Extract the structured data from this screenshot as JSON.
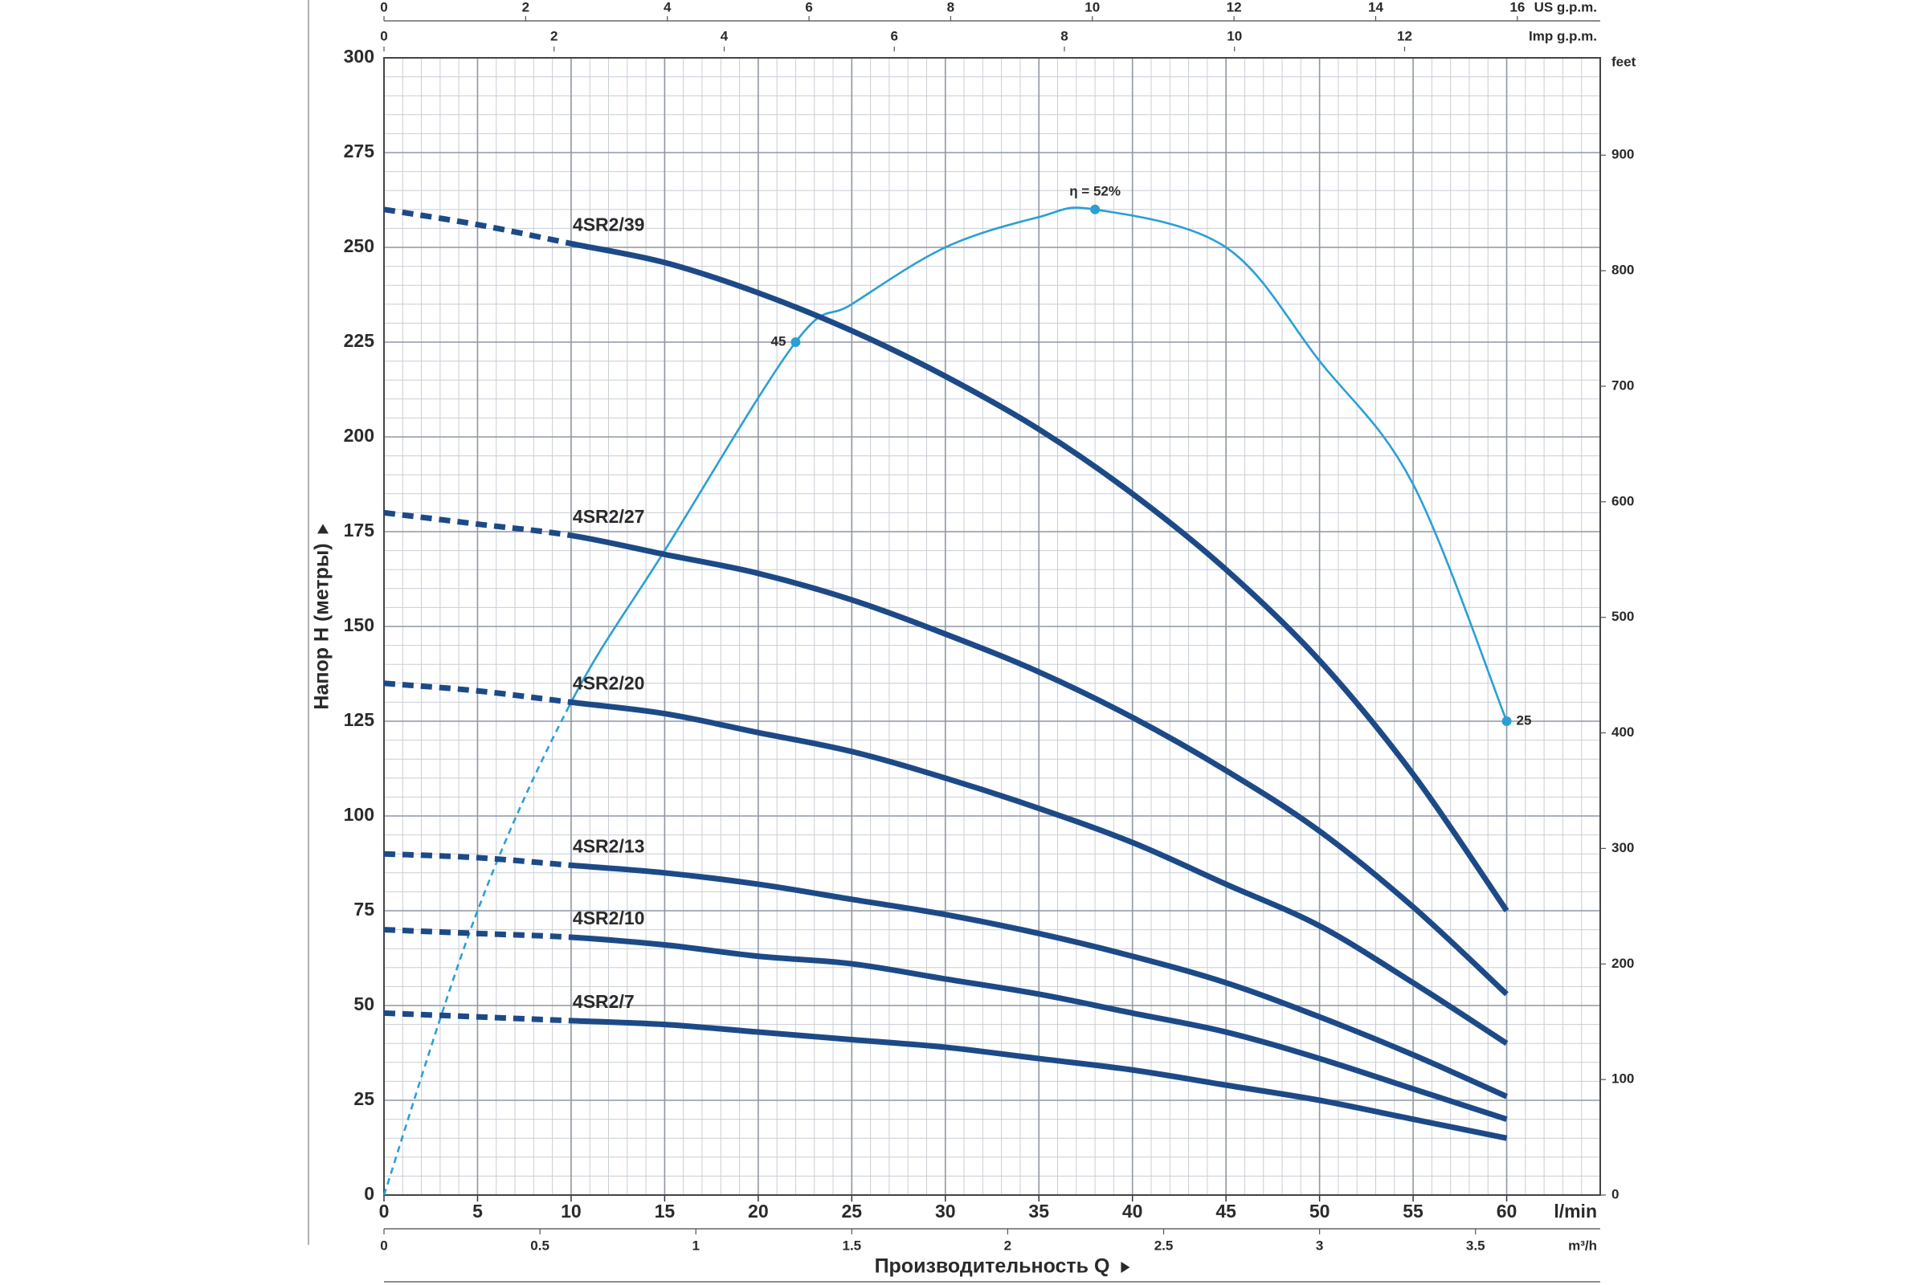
{
  "chart_data": {
    "type": "line",
    "x_label": "l/min",
    "y_label": "Напор H (метры)",
    "x_title": "Производительность Q",
    "xlim": [
      0,
      65
    ],
    "xticks": [
      0,
      5,
      10,
      15,
      20,
      25,
      30,
      35,
      40,
      45,
      50,
      55,
      60
    ],
    "ylim": [
      0,
      300
    ],
    "yticks": [
      0,
      25,
      50,
      75,
      100,
      125,
      150,
      175,
      200,
      225,
      250,
      275,
      300
    ],
    "grid": true,
    "dashed_x": [
      0,
      10
    ],
    "x": [
      0,
      5,
      10,
      15,
      20,
      25,
      30,
      35,
      40,
      45,
      50,
      55,
      60
    ],
    "series": [
      {
        "name": "4SR2/39",
        "color": "#1d4a87",
        "values": [
          260,
          256,
          251,
          246,
          238,
          228,
          216,
          202,
          185,
          165,
          141,
          111,
          75
        ]
      },
      {
        "name": "4SR2/27",
        "color": "#1d4a87",
        "values": [
          180,
          177,
          174,
          169,
          164,
          157,
          148,
          138,
          126,
          112,
          96,
          76,
          53
        ]
      },
      {
        "name": "4SR2/20",
        "color": "#1d4a87",
        "values": [
          135,
          133,
          130,
          127,
          122,
          117,
          110,
          102,
          93,
          82,
          71,
          56,
          40
        ]
      },
      {
        "name": "4SR2/13",
        "color": "#1d4a87",
        "values": [
          90,
          89,
          87,
          85,
          82,
          78,
          74,
          69,
          63,
          56,
          47,
          37,
          26
        ]
      },
      {
        "name": "4SR2/10",
        "color": "#1d4a87",
        "values": [
          70,
          69,
          68,
          66,
          63,
          61,
          57,
          53,
          48,
          43,
          36,
          28,
          20
        ]
      },
      {
        "name": "4SR2/7",
        "color": "#1d4a87",
        "values": [
          48,
          47,
          46,
          45,
          43,
          41,
          39,
          36,
          33,
          29,
          25,
          20,
          15
        ]
      }
    ],
    "efficiency": {
      "color": "#2a9fd6",
      "lim": [
        0,
        60
      ],
      "x": [
        0,
        5,
        10,
        15,
        22,
        25,
        30,
        35,
        38,
        45,
        50,
        55,
        60
      ],
      "values": [
        0,
        15,
        26,
        34,
        45,
        47,
        50,
        51.6,
        52,
        50,
        44,
        37.5,
        25
      ],
      "annotations": [
        {
          "x": 22,
          "value": 45,
          "label": "45"
        },
        {
          "x": 38,
          "value": 52,
          "label": "η = 52%"
        },
        {
          "x": 60,
          "value": 25,
          "label": "25"
        }
      ]
    },
    "secondary_axes": {
      "top_us": {
        "label": "US g.p.m.",
        "lim": [
          0,
          17.17
        ],
        "ticks": [
          0,
          2,
          4,
          6,
          8,
          10,
          12,
          14,
          16
        ]
      },
      "top_imp": {
        "label": "Imp g.p.m.",
        "lim": [
          0,
          14.3
        ],
        "ticks": [
          0,
          2,
          4,
          6,
          8,
          10,
          12
        ]
      },
      "right": {
        "label": "feet",
        "lim": [
          0,
          984.25
        ],
        "ticks": [
          0,
          100,
          200,
          300,
          400,
          500,
          600,
          700,
          800,
          900
        ]
      },
      "bottom": {
        "label": "m³/h",
        "lim": [
          0,
          3.9
        ],
        "ticks": [
          0,
          0.5,
          1,
          1.5,
          2,
          2.5,
          3,
          3.5
        ]
      }
    }
  }
}
